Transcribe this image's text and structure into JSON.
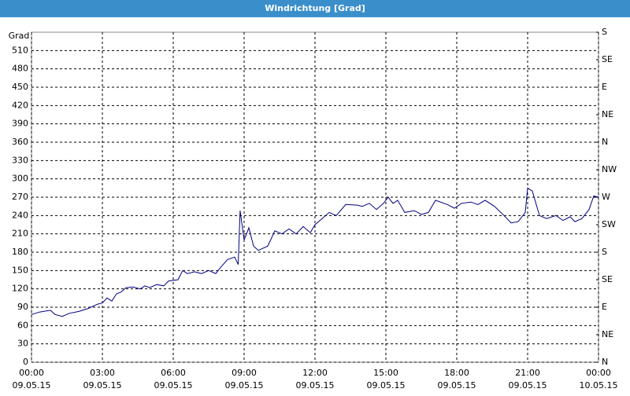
{
  "chart_data": {
    "type": "line",
    "title": "Windrichtung [Grad]",
    "y_label": "Grad",
    "ylim": [
      0,
      540
    ],
    "yticks": [
      0,
      30,
      60,
      90,
      120,
      150,
      180,
      210,
      240,
      270,
      300,
      330,
      360,
      390,
      420,
      450,
      480,
      510
    ],
    "y2lim": [
      0,
      540
    ],
    "y2ticks": [
      {
        "value": 0,
        "label": "N"
      },
      {
        "value": 45,
        "label": "NE"
      },
      {
        "value": 90,
        "label": "E"
      },
      {
        "value": 135,
        "label": "SE"
      },
      {
        "value": 180,
        "label": "S"
      },
      {
        "value": 225,
        "label": "SW"
      },
      {
        "value": 270,
        "label": "W"
      },
      {
        "value": 315,
        "label": "NW"
      },
      {
        "value": 360,
        "label": "N"
      },
      {
        "value": 405,
        "label": "NE"
      },
      {
        "value": 450,
        "label": "E"
      },
      {
        "value": 495,
        "label": "SE"
      },
      {
        "value": 540,
        "label": "S"
      }
    ],
    "xlim": [
      0,
      24
    ],
    "xticks": [
      {
        "value": 0,
        "label": "00:00",
        "date": "09.05.15"
      },
      {
        "value": 3,
        "label": "03:00",
        "date": "09.05.15"
      },
      {
        "value": 6,
        "label": "06:00",
        "date": "09.05.15"
      },
      {
        "value": 9,
        "label": "09:00",
        "date": "09.05.15"
      },
      {
        "value": 12,
        "label": "12:00",
        "date": "09.05.15"
      },
      {
        "value": 15,
        "label": "15:00",
        "date": "09.05.15"
      },
      {
        "value": 18,
        "label": "18:00",
        "date": "09.05.15"
      },
      {
        "value": 21,
        "label": "21:00",
        "date": "09.05.15"
      },
      {
        "value": 24,
        "label": "00:00",
        "date": "10.05.15"
      }
    ],
    "grid": true,
    "series": [
      {
        "color": "#000080",
        "x": [
          0,
          0.33,
          0.8,
          1,
          1.3,
          1.6,
          2,
          2.4,
          2.8,
          3,
          3.2,
          3.4,
          3.6,
          3.8,
          4,
          4.3,
          4.6,
          4.8,
          5,
          5.3,
          5.6,
          5.8,
          6.2,
          6.4,
          6.6,
          6.9,
          7.2,
          7.5,
          7.8,
          8,
          8.3,
          8.6,
          8.75,
          8.83,
          9,
          9.2,
          9.4,
          9.6,
          10,
          10.3,
          10.6,
          10.9,
          11.2,
          11.5,
          11.8,
          12,
          12.3,
          12.6,
          12.9,
          13.3,
          13.8,
          14,
          14.3,
          14.6,
          14.9,
          15.1,
          15.3,
          15.5,
          15.8,
          16.2,
          16.5,
          16.8,
          17.1,
          17.6,
          17.9,
          18.2,
          18.6,
          18.9,
          19.2,
          19.6,
          20,
          20.3,
          20.6,
          20.9,
          21,
          21.2,
          21.5,
          21.8,
          22.2,
          22.5,
          22.8,
          23,
          23.3,
          23.6,
          23.8,
          24
        ],
        "values": [
          78,
          82,
          85,
          78,
          75,
          80,
          83,
          88,
          95,
          97,
          105,
          100,
          112,
          115,
          122,
          123,
          120,
          125,
          122,
          127,
          125,
          133,
          135,
          150,
          145,
          148,
          145,
          150,
          145,
          155,
          168,
          172,
          160,
          248,
          200,
          220,
          190,
          183,
          190,
          215,
          210,
          218,
          210,
          222,
          212,
          225,
          235,
          245,
          240,
          258,
          257,
          255,
          260,
          250,
          260,
          270,
          260,
          265,
          245,
          248,
          242,
          245,
          265,
          258,
          252,
          260,
          262,
          258,
          265,
          255,
          240,
          228,
          230,
          245,
          285,
          280,
          240,
          235,
          240,
          232,
          238,
          230,
          235,
          250,
          272,
          270
        ]
      }
    ]
  }
}
